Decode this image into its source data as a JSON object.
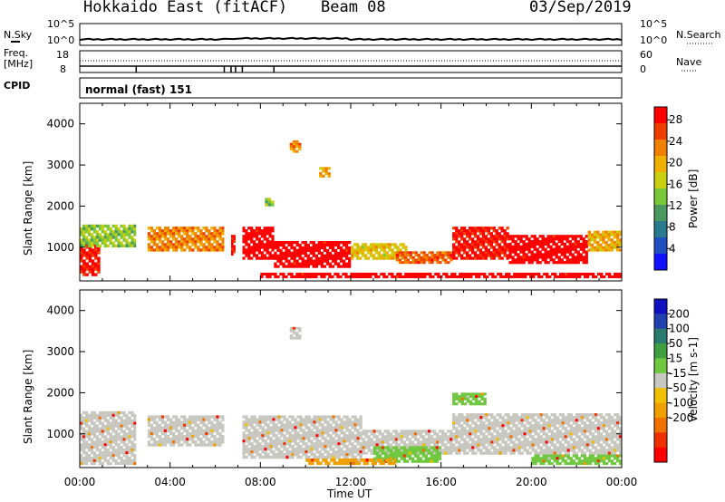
{
  "header": {
    "radar": "Hokkaido East (fitACF)",
    "beam": "Beam 08",
    "date": "03/Sep/2019"
  },
  "top_panels": {
    "nsky_label": "N.Sky",
    "nsky_ticks": [
      "10^5",
      "10^0"
    ],
    "nsearch_label": "N.Search",
    "nsearch_ticks": [
      "10^5",
      "10^0"
    ],
    "freq_label_1": "Freq.",
    "freq_label_2": "[MHz]",
    "freq_ticks": [
      "18",
      "8"
    ],
    "nave_label": "Nave",
    "nave_ticks": [
      "60",
      "0"
    ],
    "cpid_label": "CPID",
    "cpid_value": "normal (fast) 151"
  },
  "chart_data": [
    {
      "type": "heatmap",
      "name": "Power",
      "ylabel": "Slant Range [km]",
      "yticks": [
        "1000",
        "2000",
        "3000",
        "4000"
      ],
      "ylim": [
        180,
        4500
      ],
      "colorbar": {
        "label": "Power [dB]",
        "ticks": [
          "4",
          "8",
          "12",
          "16",
          "20",
          "24",
          "28"
        ],
        "colors": [
          "#1010ff",
          "#2050c0",
          "#2a7a90",
          "#4a9a60",
          "#7ac83a",
          "#c8d010",
          "#f0b000",
          "#f08000",
          "#f04000",
          "#ff0000"
        ]
      },
      "regions": [
        {
          "t0": 0.0,
          "t1": 0.9,
          "r0": 300,
          "r1": 1100,
          "level": 26
        },
        {
          "t0": 0.0,
          "t1": 2.5,
          "r0": 1000,
          "r1": 1550,
          "level": 12
        },
        {
          "t0": 3.0,
          "t1": 6.4,
          "r0": 900,
          "r1": 1500,
          "level": 20
        },
        {
          "t0": 6.7,
          "t1": 6.9,
          "r0": 800,
          "r1": 1300,
          "level": 26
        },
        {
          "t0": 7.2,
          "t1": 8.6,
          "r0": 700,
          "r1": 1500,
          "level": 28
        },
        {
          "t0": 8.6,
          "t1": 12.0,
          "r0": 500,
          "r1": 1150,
          "level": 28
        },
        {
          "t0": 12.0,
          "t1": 14.5,
          "r0": 700,
          "r1": 1100,
          "level": 16
        },
        {
          "t0": 14.0,
          "t1": 16.5,
          "r0": 600,
          "r1": 900,
          "level": 22
        },
        {
          "t0": 16.5,
          "t1": 19.0,
          "r0": 700,
          "r1": 1500,
          "level": 26
        },
        {
          "t0": 19.0,
          "t1": 22.5,
          "r0": 600,
          "r1": 1300,
          "level": 28
        },
        {
          "t0": 22.5,
          "t1": 24.0,
          "r0": 900,
          "r1": 1400,
          "level": 18
        },
        {
          "t0": 8.0,
          "t1": 24.0,
          "r0": 250,
          "r1": 380,
          "level": 28
        },
        {
          "t0": 9.3,
          "t1": 9.8,
          "r0": 3300,
          "r1": 3600,
          "level": 20
        },
        {
          "t0": 10.6,
          "t1": 11.1,
          "r0": 2700,
          "r1": 2950,
          "level": 18
        },
        {
          "t0": 8.2,
          "t1": 8.6,
          "r0": 2000,
          "r1": 2200,
          "level": 12
        }
      ]
    },
    {
      "type": "heatmap",
      "name": "Velocity",
      "ylabel": "Slant Range [km]",
      "yticks": [
        "1000",
        "2000",
        "3000",
        "4000"
      ],
      "ylim": [
        180,
        4500
      ],
      "colorbar": {
        "label": "Velocity [m s-1]",
        "ticks": [
          "200",
          "100",
          "50",
          "15",
          "-15",
          "-50",
          "-100",
          "-200"
        ],
        "colors": [
          "#1010c0",
          "#2040b0",
          "#2a7a70",
          "#40a040",
          "#70c840",
          "#c8c8c0",
          "#f0c000",
          "#f0a000",
          "#f07000",
          "#f03000",
          "#ff0000"
        ]
      },
      "regions": [
        {
          "t0": 0.0,
          "t1": 2.5,
          "r0": 250,
          "r1": 1550,
          "level": "gray"
        },
        {
          "t0": 3.0,
          "t1": 6.4,
          "r0": 700,
          "r1": 1450,
          "level": "gray"
        },
        {
          "t0": 7.2,
          "t1": 12.5,
          "r0": 400,
          "r1": 1450,
          "level": "gray"
        },
        {
          "t0": 12.5,
          "t1": 16.5,
          "r0": 500,
          "r1": 1100,
          "level": "gray"
        },
        {
          "t0": 16.5,
          "t1": 24.0,
          "r0": 500,
          "r1": 1500,
          "level": "gray"
        },
        {
          "t0": 13.0,
          "t1": 16.0,
          "r0": 300,
          "r1": 700,
          "level": "green"
        },
        {
          "t0": 20.0,
          "t1": 24.0,
          "r0": 250,
          "r1": 500,
          "level": "green"
        },
        {
          "t0": 10.0,
          "t1": 14.0,
          "r0": 250,
          "r1": 400,
          "level": "orange"
        },
        {
          "t0": 16.5,
          "t1": 18.0,
          "r0": 1700,
          "r1": 2000,
          "level": "green"
        },
        {
          "t0": 9.3,
          "t1": 9.8,
          "r0": 3300,
          "r1": 3600,
          "level": "gray"
        }
      ]
    }
  ],
  "xaxis": {
    "label": "Time UT",
    "ticks": [
      "00:00",
      "04:00",
      "08:00",
      "12:00",
      "16:00",
      "20:00",
      "00:00"
    ]
  }
}
